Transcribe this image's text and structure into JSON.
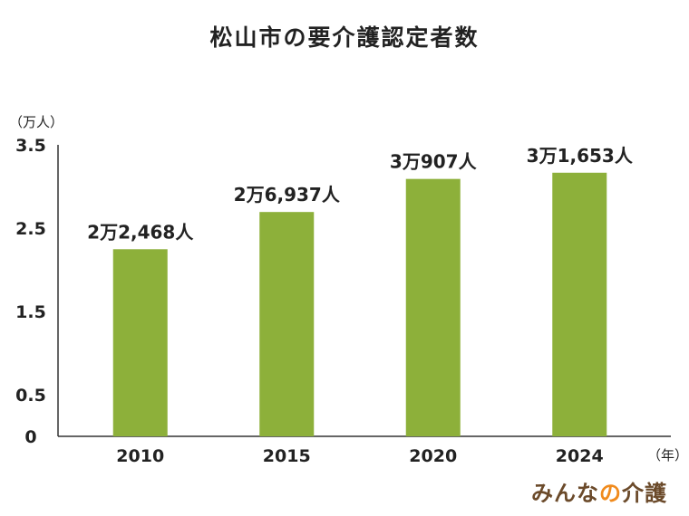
{
  "chart_data": {
    "type": "bar",
    "title": "松山市の要介護認定者数",
    "ylabel": "（万人）",
    "xlabel": "（年）",
    "categories": [
      "2010",
      "2015",
      "2020",
      "2024"
    ],
    "values": [
      2.2468,
      2.6937,
      3.0907,
      3.1653
    ],
    "data_labels": [
      "2万2,468人",
      "2万6,937人",
      "3万907人",
      "3万1,653人"
    ],
    "y_ticks": [
      0,
      0.5,
      1.5,
      2.5,
      3.5
    ],
    "y_tick_labels": [
      "0",
      "0.5",
      "1.5",
      "2.5",
      "3.5"
    ],
    "ylim": [
      0,
      3.5
    ],
    "grid": false,
    "legend": "none",
    "bar_color": "#8db03a"
  },
  "brand": {
    "part1": "みんな",
    "part2": "の",
    "part3": "介護",
    "color_main": "#6b4a2a",
    "color_accent": "#f08a1c"
  }
}
